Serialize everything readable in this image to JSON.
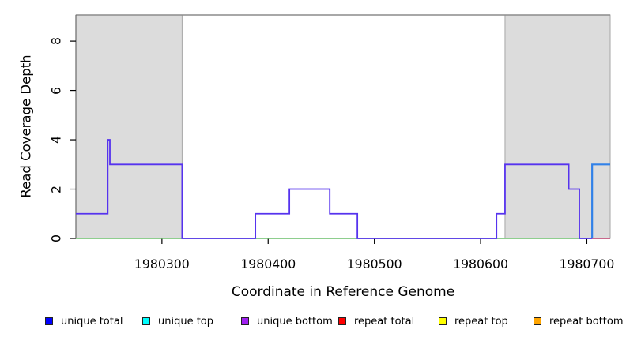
{
  "chart_data": {
    "type": "line",
    "subtype": "step-coverage-profile",
    "title": "",
    "xlabel": "Coordinate in Reference Genome",
    "ylabel": "Read Coverage Depth",
    "xlim": [
      1980219,
      1980722
    ],
    "ylim": [
      0,
      9.06
    ],
    "xticks": [
      1980300,
      1980400,
      1980500,
      1980600,
      1980700
    ],
    "yticks": [
      0,
      2,
      4,
      6,
      8
    ],
    "grid": false,
    "legend_position": "bottom",
    "axis_color": "#000000",
    "repeat_region_shading": {
      "fill": "#dcdcdc",
      "border": "#a6a6a6",
      "regions": [
        [
          1980219,
          1980319
        ],
        [
          1980623,
          1980722
        ]
      ]
    },
    "top_boundary_line": {
      "color": "#8c8c8c",
      "y_value": 9.06
    },
    "series": [
      {
        "key": "zero-coverage-baseline-green",
        "label": "zero coverage baseline (green)",
        "color": "#69bd69",
        "width": 1.4,
        "steps": [
          [
            1980219,
            1980705,
            0
          ]
        ]
      },
      {
        "key": "unique-bottom-coverage",
        "label": "unique bottom",
        "color": "#5633ee",
        "width": 1.8,
        "steps": [
          [
            1980219,
            1980249,
            1
          ],
          [
            1980249,
            1980251,
            4
          ],
          [
            1980251,
            1980319,
            3
          ],
          [
            1980319,
            1980388,
            0
          ],
          [
            1980388,
            1980420,
            1
          ],
          [
            1980420,
            1980458,
            2
          ],
          [
            1980458,
            1980484,
            1
          ],
          [
            1980484,
            1980615,
            0
          ],
          [
            1980615,
            1980623,
            1
          ],
          [
            1980623,
            1980683,
            3
          ],
          [
            1980683,
            1980693,
            2
          ],
          [
            1980693,
            1980722,
            0
          ]
        ]
      },
      {
        "key": "repeat-total-baseline-red",
        "label": "repeat zero baseline (red)",
        "color": "#e06b6b",
        "width": 1.4,
        "steps": [
          [
            1980705,
            1980722,
            0
          ]
        ]
      },
      {
        "key": "unique-top-coverage",
        "label": "unique top",
        "color": "#3181e8",
        "width": 2.2,
        "steps": [
          [
            1980705,
            1980705,
            0
          ],
          [
            1980705,
            1980722,
            3
          ]
        ]
      }
    ]
  },
  "legend": {
    "swatch_border": "#222222",
    "items": [
      {
        "label": "unique total",
        "color": "#0000ff"
      },
      {
        "label": "unique top",
        "color": "#00ffff"
      },
      {
        "label": "unique bottom",
        "color": "#a020f0"
      },
      {
        "label": "repeat total",
        "color": "#ff0000"
      },
      {
        "label": "repeat top",
        "color": "#ffff00"
      },
      {
        "label": "repeat bottom",
        "color": "#ffa500"
      }
    ]
  }
}
